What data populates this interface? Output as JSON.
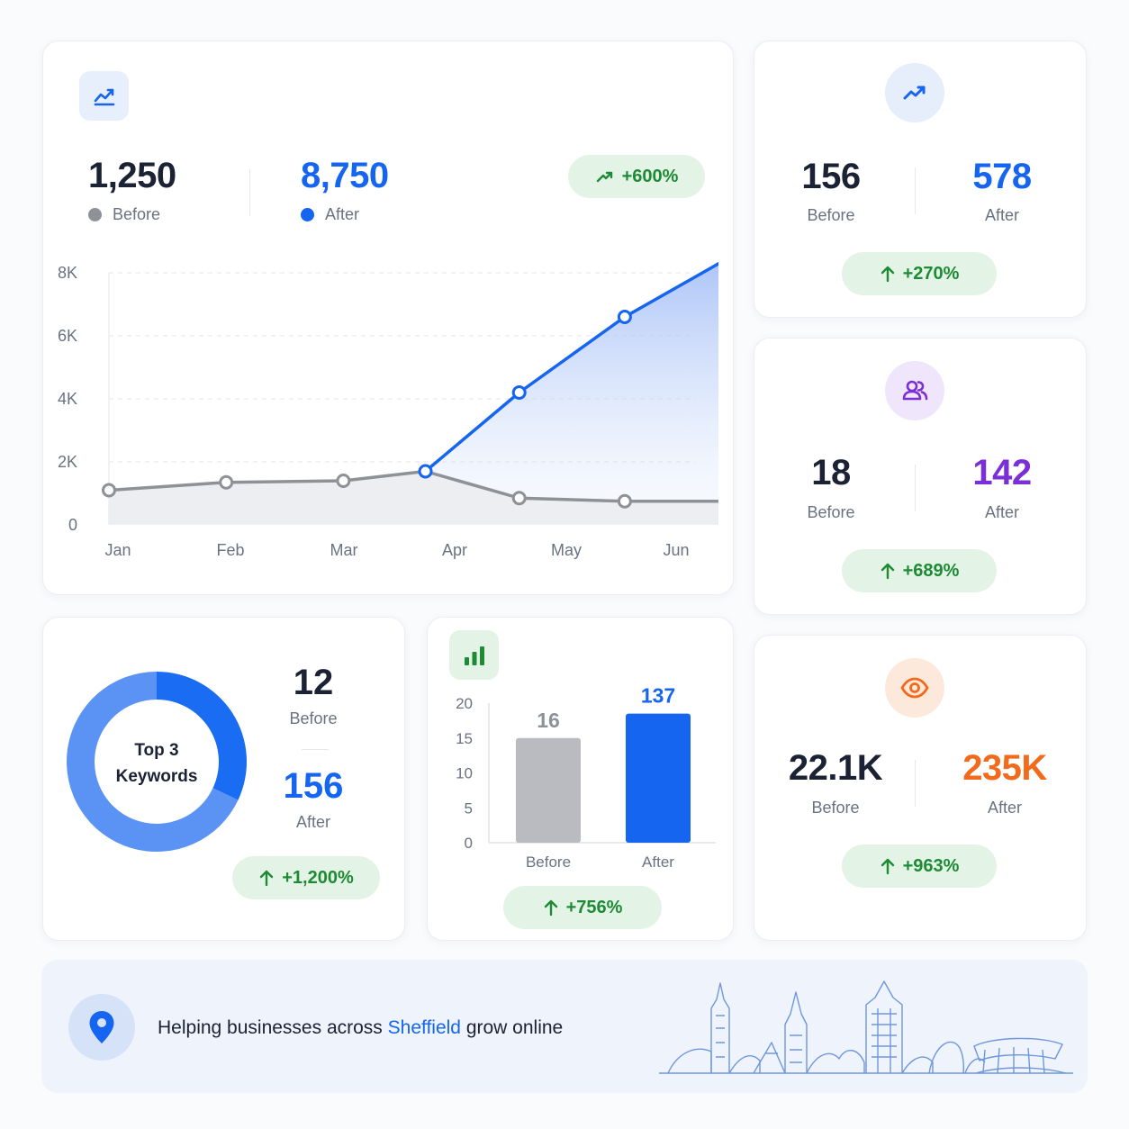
{
  "colors": {
    "accent": "#1565f0",
    "before": "#8e9196",
    "purple": "#7b2fd6",
    "orange": "#f26a1b",
    "green": "#1e8a35",
    "pill_bg": "#e3f4e6"
  },
  "traffic": {
    "icon": "chart-line-icon",
    "before_value": "1,250",
    "before_label": "Before",
    "after_value": "8,750",
    "after_label": "After",
    "change": "+600%"
  },
  "growth": {
    "icon": "trending-up-icon",
    "before_value": "156",
    "before_label": "Before",
    "after_value": "578",
    "after_label": "After",
    "change": "+270%"
  },
  "users": {
    "icon": "users-icon",
    "before_value": "18",
    "before_label": "Before",
    "after_value": "142",
    "after_label": "After",
    "change": "+689%"
  },
  "views": {
    "icon": "eye-icon",
    "before_value": "22.1K",
    "before_label": "Before",
    "after_value": "235K",
    "after_label": "After",
    "change": "+963%"
  },
  "keywords": {
    "center_line1": "Top 3",
    "center_line2": "Keywords",
    "before_value": "12",
    "before_label": "Before",
    "after_value": "156",
    "after_label": "After",
    "change": "+1,200%"
  },
  "bars": {
    "icon": "bar-chart-icon",
    "change": "+756%"
  },
  "footer": {
    "icon": "location-pin-icon",
    "text_before": "Helping businesses across ",
    "text_highlight": "Sheffield",
    "text_after": " grow online"
  },
  "chart_data": [
    {
      "type": "area",
      "categories": [
        "Jan",
        "Feb",
        "Mar",
        "Apr",
        "May",
        "Jun"
      ],
      "series": [
        {
          "name": "Before",
          "x": [
            0,
            1,
            2,
            2.7,
            3.5,
            4.4,
            5.3
          ],
          "values": [
            1100,
            1350,
            1400,
            1700,
            850,
            750,
            750
          ]
        },
        {
          "name": "After",
          "x": [
            2.7,
            3.5,
            4.4,
            5.3
          ],
          "values": [
            1700,
            4200,
            6600,
            8500
          ]
        }
      ],
      "y_ticks": [
        "0",
        "2K",
        "4K",
        "6K",
        "8K"
      ],
      "ylim": [
        0,
        8000
      ],
      "grid": true
    },
    {
      "type": "donut",
      "values": [
        12,
        156
      ],
      "slices_fraction": [
        0.32,
        0.68
      ]
    },
    {
      "type": "bar",
      "categories": [
        "Before",
        "After"
      ],
      "values": [
        16,
        137
      ],
      "value_labels": [
        "16",
        "137"
      ],
      "y_ticks": [
        "0",
        "5",
        "10",
        "15",
        "20"
      ],
      "ylim": [
        0,
        20
      ],
      "display_heights": [
        15,
        18.5
      ]
    }
  ]
}
